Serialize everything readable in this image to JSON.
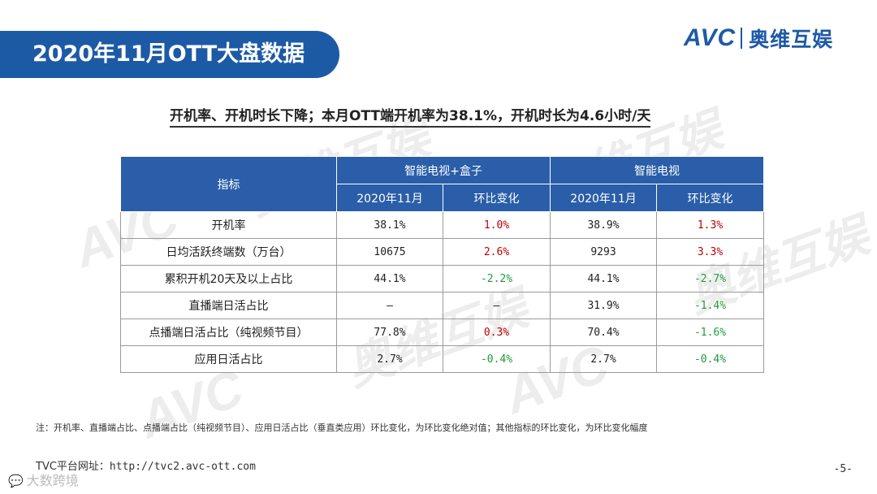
{
  "header": {
    "title": "2020年11月OTT大盘数据",
    "logo_brand": "AVC",
    "logo_cn": "奥维互娱"
  },
  "watermark": {
    "brand": "AVC",
    "cn": "奥维互娱"
  },
  "subtitle": "开机率、开机时长下降；本月OTT端开机率为38.1%，开机时长为4.6小时/天",
  "table": {
    "header": {
      "indicator": "指标",
      "group1": "智能电视+盒子",
      "group2": "智能电视",
      "month": "2020年11月",
      "change": "环比变化"
    },
    "rows": [
      {
        "label": "开机率",
        "v1": "38.1%",
        "c1": "1.0%",
        "v2": "38.9%",
        "c2": "1.3%"
      },
      {
        "label": "日均活跃终端数（万台）",
        "v1": "10675",
        "c1": "2.6%",
        "v2": "9293",
        "c2": "3.3%"
      },
      {
        "label": "累积开机20天及以上占比",
        "v1": "44.1%",
        "c1": "-2.2%",
        "v2": "44.1%",
        "c2": "-2.7%"
      },
      {
        "label": "直播端日活占比",
        "v1": "—",
        "c1": "—",
        "v2": "31.9%",
        "c2": "-1.4%"
      },
      {
        "label": "点播端日活占比（纯视频节目）",
        "v1": "77.8%",
        "c1": "0.3%",
        "v2": "70.4%",
        "c2": "-1.6%"
      },
      {
        "label": "应用日活占比",
        "v1": "2.7%",
        "c1": "-0.4%",
        "v2": "2.7%",
        "c2": "-0.4%"
      }
    ]
  },
  "footer": {
    "note": "注：开机率、直播端占比、点播端占比（纯视频节目）、应用日活占比（垂直类应用）环比变化，为环比变化绝对值；其他指标的环比变化，为环比变化幅度",
    "url_label": "TVC平台网址：",
    "url": "http://tvc2.avc-ott.com",
    "page": "-5-",
    "credit": "大数跨境"
  },
  "colors": {
    "brand_blue": "#1d5aa6",
    "header_blue": "#2a5ea8",
    "positive_red": "#c00000",
    "negative_green": "#1f9a3a"
  }
}
